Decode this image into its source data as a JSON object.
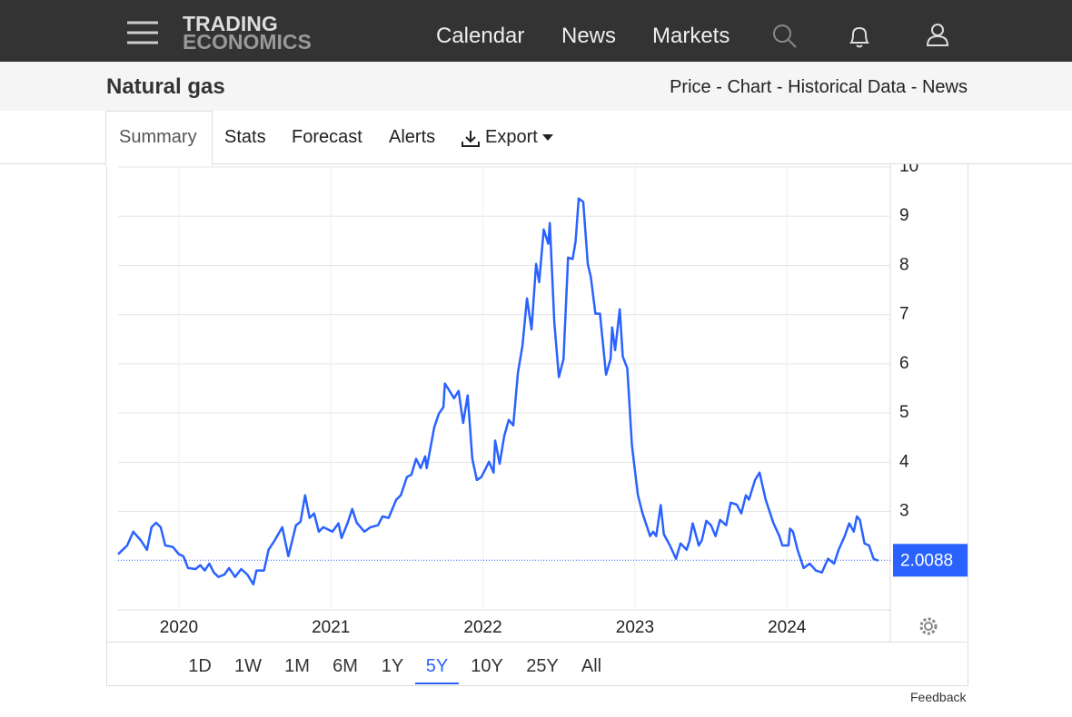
{
  "nav": {
    "logo_top": "TRADING",
    "logo_bottom": "ECONOMICS",
    "items": [
      "Calendar",
      "News",
      "Markets"
    ]
  },
  "header": {
    "title": "Natural gas",
    "links": [
      "Price",
      "Chart",
      "Historical Data",
      "News"
    ],
    "separator": "-"
  },
  "tabs": [
    "Summary",
    "Stats",
    "Forecast",
    "Alerts",
    "Export"
  ],
  "chart_data": {
    "type": "line",
    "color": "#2962ff",
    "x": [
      2019.6,
      2019.63,
      2019.66,
      2019.7,
      2019.75,
      2019.79,
      2019.82,
      2019.85,
      2019.88,
      2019.91,
      2019.96,
      2020.0,
      2020.03,
      2020.06,
      2020.11,
      2020.14,
      2020.17,
      2020.2,
      2020.23,
      2020.26,
      2020.3,
      2020.33,
      2020.37,
      2020.41,
      2020.45,
      2020.49,
      2020.51,
      2020.56,
      2020.59,
      2020.63,
      2020.68,
      2020.72,
      2020.77,
      2020.8,
      2020.83,
      2020.86,
      2020.89,
      2020.92,
      2020.95,
      2021.01,
      2021.05,
      2021.07,
      2021.11,
      2021.14,
      2021.17,
      2021.22,
      2021.26,
      2021.31,
      2021.34,
      2021.38,
      2021.43,
      2021.46,
      2021.5,
      2021.53,
      2021.56,
      2021.59,
      2021.62,
      2021.63,
      2021.68,
      2021.71,
      2021.74,
      2021.75,
      2021.78,
      2021.81,
      2021.84,
      2021.87,
      2021.9,
      2021.93,
      2021.96,
      2021.99,
      2022.04,
      2022.07,
      2022.08,
      2022.11,
      2022.14,
      2022.17,
      2022.2,
      2022.23,
      2022.26,
      2022.29,
      2022.32,
      2022.35,
      2022.37,
      2022.4,
      2022.43,
      2022.44,
      2022.47,
      2022.5,
      2022.53,
      2022.56,
      2022.59,
      2022.61,
      2022.63,
      2022.66,
      2022.69,
      2022.71,
      2022.74,
      2022.77,
      2022.81,
      2022.84,
      2022.85,
      2022.87,
      2022.9,
      2022.92,
      2022.95,
      2022.98,
      2023.02,
      2023.05,
      2023.1,
      2023.12,
      2023.14,
      2023.17,
      2023.19,
      2023.23,
      2023.27,
      2023.3,
      2023.34,
      2023.36,
      2023.38,
      2023.42,
      2023.44,
      2023.47,
      2023.5,
      2023.53,
      2023.56,
      2023.6,
      2023.63,
      2023.67,
      2023.7,
      2023.73,
      2023.75,
      2023.79,
      2023.82,
      2023.86,
      2023.91,
      2023.95,
      2023.97,
      2024.01,
      2024.02,
      2024.04,
      2024.07,
      2024.11,
      2024.15,
      2024.19,
      2024.23,
      2024.27,
      2024.31,
      2024.34,
      2024.38,
      2024.41,
      2024.44,
      2024.46,
      2024.48,
      2024.51,
      2024.54,
      2024.57,
      2024.6
    ],
    "values": [
      2.13,
      2.22,
      2.31,
      2.59,
      2.41,
      2.22,
      2.68,
      2.77,
      2.68,
      2.31,
      2.28,
      2.13,
      2.09,
      1.85,
      1.83,
      1.91,
      1.8,
      1.94,
      1.76,
      1.67,
      1.72,
      1.85,
      1.67,
      1.83,
      1.72,
      1.52,
      1.8,
      1.8,
      2.22,
      2.41,
      2.68,
      2.09,
      2.72,
      2.79,
      3.33,
      2.87,
      2.96,
      2.59,
      2.68,
      2.59,
      2.76,
      2.46,
      2.77,
      3.05,
      2.77,
      2.59,
      2.68,
      2.72,
      2.9,
      2.87,
      3.24,
      3.33,
      3.7,
      3.75,
      4.07,
      3.88,
      4.12,
      3.88,
      4.71,
      4.99,
      5.12,
      5.6,
      5.45,
      5.3,
      5.45,
      4.8,
      5.36,
      4.07,
      3.64,
      3.7,
      4.01,
      3.79,
      4.44,
      3.97,
      4.53,
      4.86,
      4.75,
      5.82,
      6.37,
      7.33,
      6.7,
      8.03,
      7.66,
      8.73,
      8.44,
      8.86,
      6.83,
      5.73,
      6.1,
      8.16,
      8.13,
      8.49,
      9.36,
      9.29,
      8.03,
      7.76,
      7.02,
      7.02,
      5.78,
      6.1,
      6.74,
      6.28,
      7.11,
      6.15,
      5.91,
      4.34,
      3.33,
      2.96,
      2.5,
      2.59,
      2.5,
      3.13,
      2.54,
      2.31,
      2.04,
      2.35,
      2.22,
      2.41,
      2.76,
      2.31,
      2.41,
      2.81,
      2.72,
      2.5,
      2.83,
      2.72,
      3.18,
      3.14,
      2.96,
      3.33,
      3.24,
      3.64,
      3.79,
      3.24,
      2.77,
      2.5,
      2.31,
      2.31,
      2.65,
      2.59,
      2.22,
      1.85,
      1.94,
      1.8,
      1.76,
      2.04,
      1.94,
      2.22,
      2.5,
      2.76,
      2.59,
      2.9,
      2.83,
      2.35,
      2.31,
      2.04,
      2.0
    ],
    "last_value": 2.0088,
    "xlim": [
      2019.6,
      2024.68
    ],
    "xticks": [
      2020,
      2021,
      2022,
      2023,
      2024
    ],
    "ylim": [
      1,
      10
    ],
    "yticks": [
      3,
      4,
      5,
      6,
      7,
      8,
      9,
      10
    ],
    "grid": true
  },
  "ranges": [
    "1D",
    "1W",
    "1M",
    "6M",
    "1Y",
    "5Y",
    "10Y",
    "25Y",
    "All"
  ],
  "active_range": "5Y",
  "feedback": "Feedback"
}
